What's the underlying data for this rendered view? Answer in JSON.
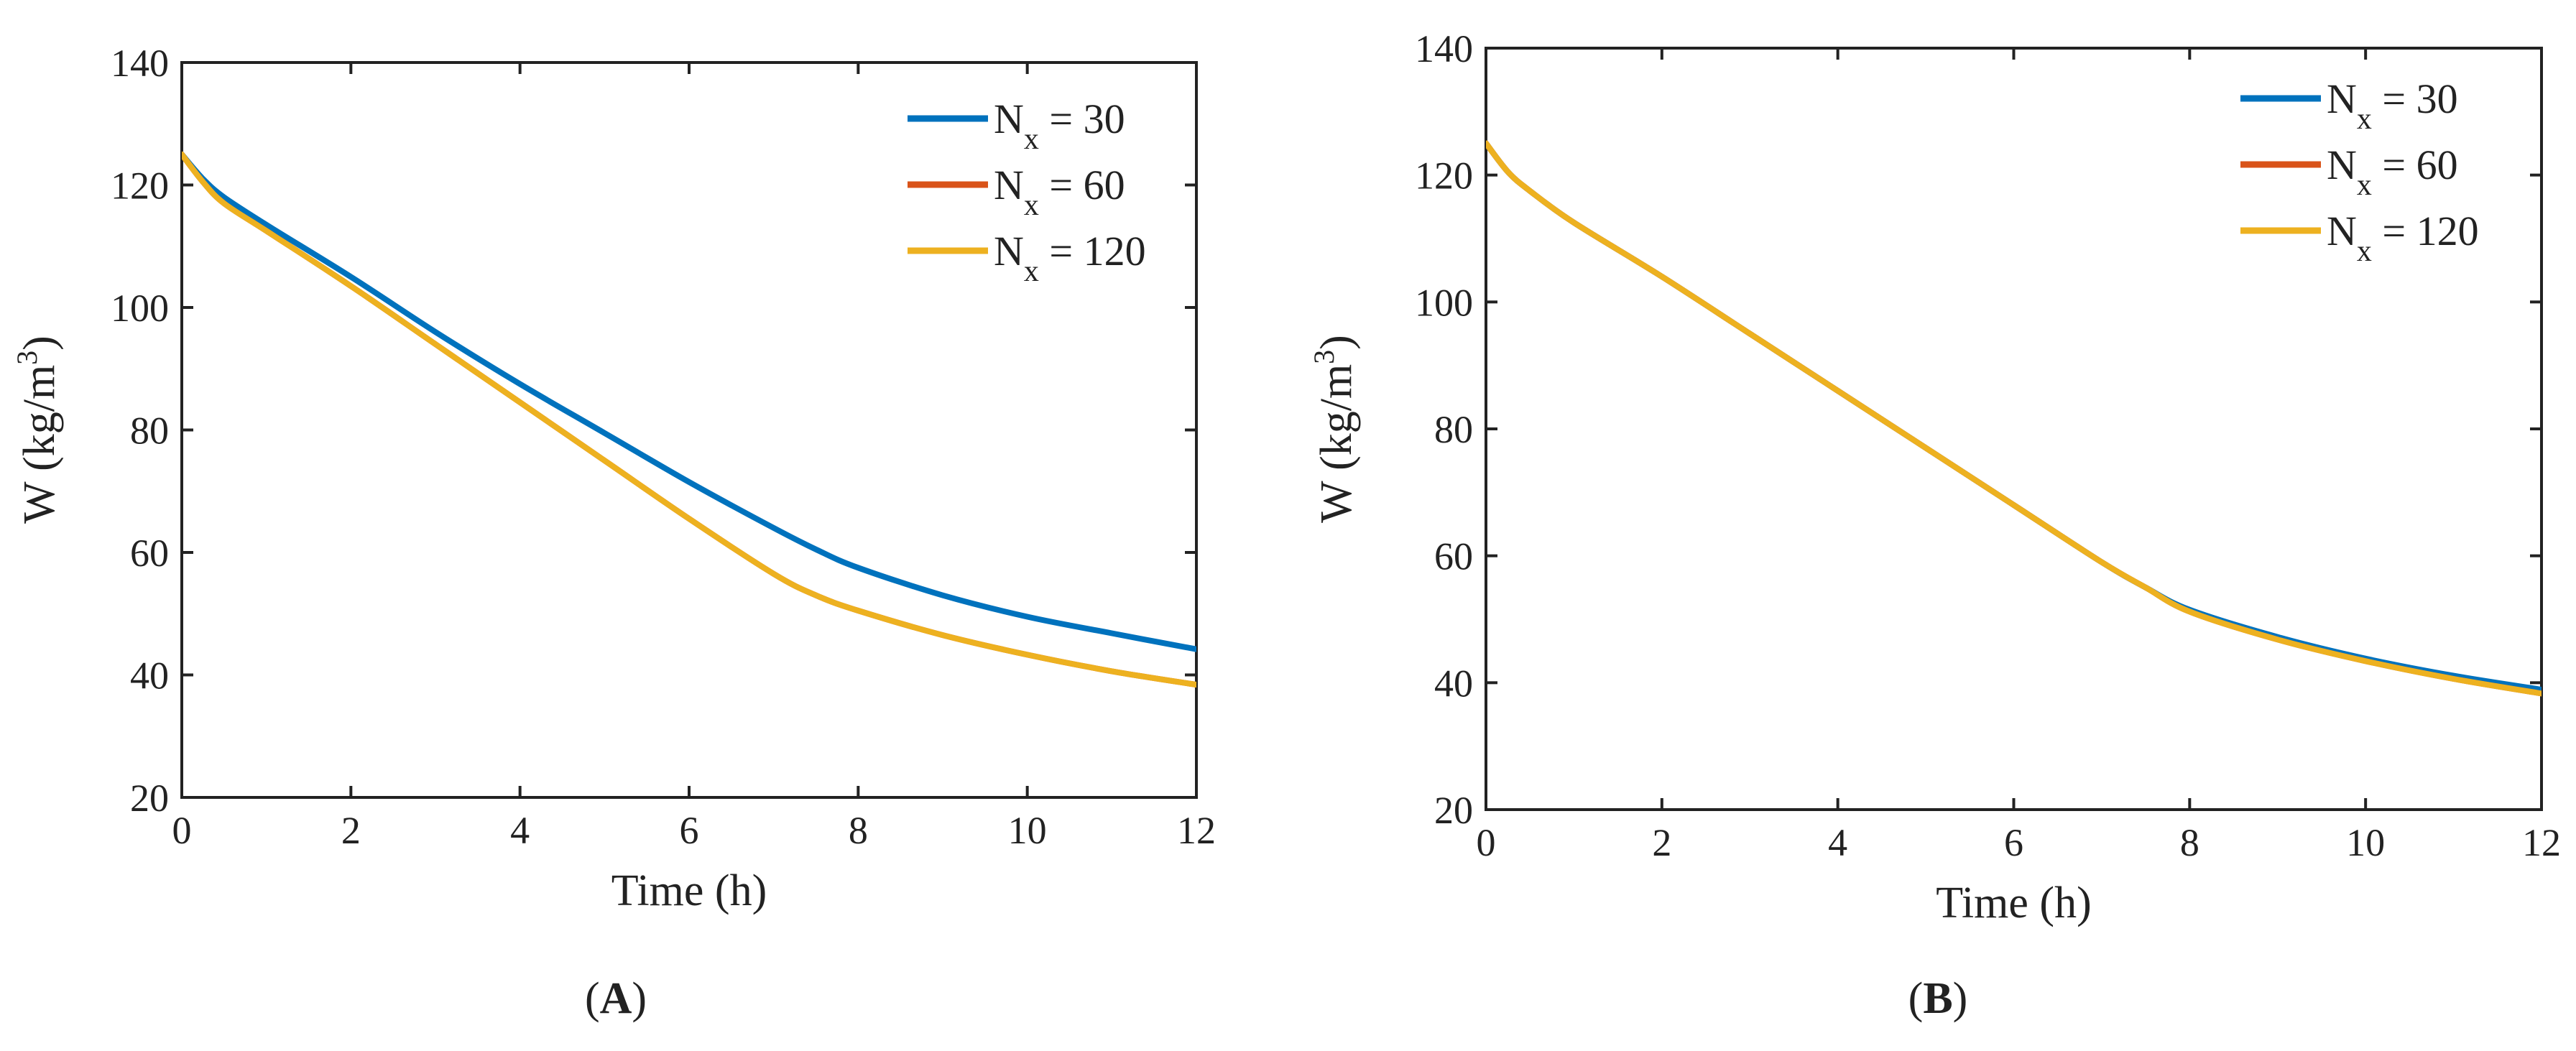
{
  "chart_data": [
    {
      "type": "line",
      "panel_label": "A",
      "xlabel": "Time (h)",
      "ylabel": "W (kg/m3)",
      "ylabel_base": "W (kg/m",
      "ylabel_sup": "3",
      "ylabel_close": ")",
      "xlim": [
        0,
        12
      ],
      "ylim": [
        20,
        140
      ],
      "xticks": [
        0,
        2,
        4,
        6,
        8,
        10,
        12
      ],
      "yticks": [
        20,
        40,
        60,
        80,
        100,
        120,
        140
      ],
      "legend_position": "top-right",
      "series": [
        {
          "name": "Nx = 30",
          "label_main": "N",
          "label_sub": "x",
          "label_rest": " = 30",
          "color": "#0072BD",
          "x": [
            0,
            0.25,
            0.5,
            1,
            2,
            3,
            4,
            5,
            6,
            7,
            7.5,
            8,
            9,
            10,
            11,
            12
          ],
          "y": [
            125,
            121,
            118,
            113.5,
            105,
            96,
            87.5,
            79.5,
            71.5,
            64,
            60.5,
            57.5,
            53,
            49.5,
            46.8,
            44.2
          ]
        },
        {
          "name": "Nx = 60",
          "label_main": "N",
          "label_sub": "x",
          "label_rest": " = 60",
          "color": "#D95319",
          "x": [
            0,
            0.25,
            0.5,
            1,
            2,
            3,
            4,
            5,
            6,
            7,
            7.5,
            8,
            9,
            10,
            11,
            12
          ],
          "y": [
            125,
            120.5,
            117,
            112.5,
            103.5,
            94,
            84.5,
            75,
            65.5,
            56.5,
            53,
            50.5,
            46.5,
            43.3,
            40.6,
            38.4
          ]
        },
        {
          "name": "Nx = 120",
          "label_main": "N",
          "label_sub": "x",
          "label_rest": " = 120",
          "color": "#EDB120",
          "x": [
            0,
            0.25,
            0.5,
            1,
            2,
            3,
            4,
            5,
            6,
            7,
            7.5,
            8,
            9,
            10,
            11,
            12
          ],
          "y": [
            125,
            120.5,
            117,
            112.5,
            103.5,
            94,
            84.5,
            75,
            65.5,
            56.5,
            53,
            50.5,
            46.5,
            43.3,
            40.6,
            38.4
          ]
        }
      ]
    },
    {
      "type": "line",
      "panel_label": "B",
      "xlabel": "Time (h)",
      "ylabel": "W (kg/m3)",
      "ylabel_base": "W (kg/m",
      "ylabel_sup": "3",
      "ylabel_close": ")",
      "xlim": [
        0,
        12
      ],
      "ylim": [
        20,
        140
      ],
      "xticks": [
        0,
        2,
        4,
        6,
        8,
        10,
        12
      ],
      "yticks": [
        20,
        40,
        60,
        80,
        100,
        120,
        140
      ],
      "legend_position": "top-right",
      "series": [
        {
          "name": "Nx = 30",
          "label_main": "N",
          "label_sub": "x",
          "label_rest": " = 30",
          "color": "#0072BD",
          "x": [
            0,
            0.25,
            0.5,
            1,
            2,
            3,
            4,
            5,
            6,
            7,
            7.5,
            8,
            9,
            10,
            11,
            12
          ],
          "y": [
            125,
            120.5,
            117.5,
            112.5,
            104,
            95,
            86,
            77,
            68,
            59,
            55,
            51.5,
            47.2,
            43.8,
            41.1,
            38.9
          ]
        },
        {
          "name": "Nx = 60",
          "label_main": "N",
          "label_sub": "x",
          "label_rest": " = 60",
          "color": "#D95319",
          "x": [
            0,
            0.25,
            0.5,
            1,
            2,
            3,
            4,
            5,
            6,
            7,
            7.5,
            8,
            9,
            10,
            11,
            12
          ],
          "y": [
            125,
            120.5,
            117.5,
            112.5,
            104,
            95,
            86,
            77,
            68,
            59,
            55,
            51.2,
            46.8,
            43.4,
            40.6,
            38.3
          ]
        },
        {
          "name": "Nx = 120",
          "label_main": "N",
          "label_sub": "x",
          "label_rest": " = 120",
          "color": "#EDB120",
          "x": [
            0,
            0.25,
            0.5,
            1,
            2,
            3,
            4,
            5,
            6,
            7,
            7.5,
            8,
            9,
            10,
            11,
            12
          ],
          "y": [
            125,
            120.5,
            117.5,
            112.5,
            104,
            95,
            86,
            77,
            68,
            59,
            55,
            51.2,
            46.8,
            43.4,
            40.6,
            38.3
          ]
        }
      ]
    }
  ]
}
